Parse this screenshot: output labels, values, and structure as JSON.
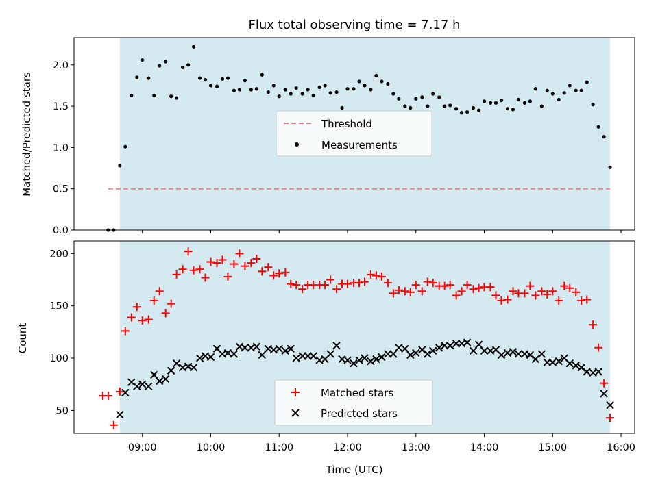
{
  "chart_data": [
    {
      "type": "scatter",
      "title": "Flux total observing time = 7.17 h",
      "xlabel": "",
      "ylabel": "Matched/Predicted stars",
      "x_unit": "hours (UTC)",
      "xlim": [
        8.0,
        16.2
      ],
      "ylim": [
        0.0,
        2.33
      ],
      "yticks": [
        0.0,
        0.5,
        1.0,
        1.5,
        2.0
      ],
      "ytick_labels": [
        "0.0",
        "0.5",
        "1.0",
        "1.5",
        "2.0"
      ],
      "shaded_region": {
        "x": [
          8.67,
          15.84
        ],
        "color": "#d4e9f0"
      },
      "threshold": {
        "name": "Threshold",
        "value": 0.5,
        "x": [
          8.5,
          15.84
        ],
        "color": "#f08080",
        "style": "dashed"
      },
      "legend": {
        "placement": "center",
        "entries": [
          "Threshold",
          "Measurements"
        ]
      },
      "series": [
        {
          "name": "Measurements",
          "marker": "dot",
          "color": "#000000",
          "x": [
            8.5,
            8.58,
            8.67,
            8.75,
            8.84,
            8.92,
            9.0,
            9.09,
            9.17,
            9.25,
            9.34,
            9.42,
            9.5,
            9.59,
            9.67,
            9.75,
            9.84,
            9.92,
            10.0,
            10.09,
            10.17,
            10.25,
            10.34,
            10.42,
            10.5,
            10.59,
            10.67,
            10.75,
            10.84,
            10.92,
            11.0,
            11.09,
            11.17,
            11.25,
            11.34,
            11.42,
            11.5,
            11.59,
            11.67,
            11.75,
            11.84,
            11.92,
            12.0,
            12.09,
            12.17,
            12.25,
            12.34,
            12.42,
            12.5,
            12.59,
            12.67,
            12.75,
            12.84,
            12.92,
            13.0,
            13.09,
            13.17,
            13.25,
            13.34,
            13.42,
            13.5,
            13.59,
            13.67,
            13.75,
            13.84,
            13.92,
            14.0,
            14.09,
            14.17,
            14.25,
            14.34,
            14.42,
            14.5,
            14.59,
            14.67,
            14.75,
            14.84,
            14.92,
            15.0,
            15.09,
            15.17,
            15.25,
            15.34,
            15.42,
            15.5,
            15.59,
            15.67,
            15.75,
            15.84
          ],
          "y": [
            0.0,
            0.0,
            0.78,
            1.01,
            1.63,
            1.85,
            2.06,
            1.84,
            1.63,
            1.99,
            2.04,
            1.62,
            1.6,
            1.97,
            2.0,
            2.22,
            1.84,
            1.82,
            1.75,
            1.74,
            1.83,
            1.84,
            1.69,
            1.7,
            1.81,
            1.7,
            1.71,
            1.88,
            1.67,
            1.75,
            1.62,
            1.7,
            1.65,
            1.72,
            1.65,
            1.7,
            1.63,
            1.73,
            1.75,
            1.66,
            1.67,
            1.48,
            1.71,
            1.71,
            1.8,
            1.75,
            1.7,
            1.87,
            1.8,
            1.77,
            1.65,
            1.59,
            1.5,
            1.48,
            1.59,
            1.61,
            1.5,
            1.65,
            1.61,
            1.5,
            1.51,
            1.47,
            1.42,
            1.43,
            1.48,
            1.45,
            1.56,
            1.54,
            1.54,
            1.57,
            1.47,
            1.46,
            1.58,
            1.54,
            1.56,
            1.71,
            1.5,
            1.69,
            1.65,
            1.58,
            1.66,
            1.75,
            1.69,
            1.69,
            1.79,
            1.52,
            1.25,
            1.13,
            0.76
          ]
        }
      ]
    },
    {
      "type": "scatter",
      "title": "",
      "xlabel": "Time (UTC)",
      "ylabel": "Count",
      "x_unit": "hours (UTC)",
      "xlim": [
        8.0,
        16.2
      ],
      "ylim": [
        28,
        212
      ],
      "yticks": [
        50,
        100,
        150,
        200
      ],
      "ytick_labels": [
        "50",
        "100",
        "150",
        "200"
      ],
      "xticks": [
        9,
        10,
        11,
        12,
        13,
        14,
        15,
        16
      ],
      "xtick_labels": [
        "09:00",
        "10:00",
        "11:00",
        "12:00",
        "13:00",
        "14:00",
        "15:00",
        "16:00"
      ],
      "shaded_region": {
        "x": [
          8.67,
          15.84
        ],
        "color": "#d4e9f0"
      },
      "legend": {
        "placement": "bottom-center",
        "entries": [
          "Matched stars",
          "Predicted stars"
        ]
      },
      "series": [
        {
          "name": "Matched stars",
          "marker": "plus",
          "color": "#ff0000",
          "x": [
            8.42,
            8.5,
            8.58,
            8.67,
            8.75,
            8.84,
            8.92,
            9.0,
            9.09,
            9.17,
            9.25,
            9.34,
            9.42,
            9.5,
            9.59,
            9.67,
            9.75,
            9.84,
            9.92,
            10.0,
            10.09,
            10.17,
            10.25,
            10.34,
            10.42,
            10.5,
            10.59,
            10.67,
            10.75,
            10.84,
            10.92,
            11.0,
            11.09,
            11.17,
            11.25,
            11.34,
            11.42,
            11.5,
            11.59,
            11.67,
            11.75,
            11.84,
            11.92,
            12.0,
            12.09,
            12.17,
            12.25,
            12.34,
            12.42,
            12.5,
            12.59,
            12.67,
            12.75,
            12.84,
            12.92,
            13.0,
            13.09,
            13.17,
            13.25,
            13.34,
            13.42,
            13.5,
            13.59,
            13.67,
            13.75,
            13.84,
            13.92,
            14.0,
            14.09,
            14.17,
            14.25,
            14.34,
            14.42,
            14.5,
            14.59,
            14.67,
            14.75,
            14.84,
            14.92,
            15.0,
            15.09,
            15.17,
            15.25,
            15.34,
            15.42,
            15.5,
            15.59,
            15.67,
            15.75,
            15.84
          ],
          "y": [
            64,
            64,
            36,
            68,
            126,
            139,
            149,
            136,
            137,
            155,
            164,
            143,
            152,
            180,
            185,
            202,
            184,
            185,
            177,
            192,
            191,
            194,
            178,
            190,
            200,
            188,
            191,
            195,
            183,
            187,
            179,
            181,
            182,
            171,
            170,
            166,
            170,
            170,
            170,
            170,
            175,
            166,
            171,
            171,
            172,
            172,
            173,
            180,
            179,
            178,
            172,
            162,
            165,
            164,
            163,
            170,
            164,
            173,
            172,
            169,
            169,
            170,
            160,
            164,
            170,
            166,
            167,
            168,
            168,
            160,
            155,
            156,
            164,
            162,
            162,
            169,
            160,
            164,
            161,
            164,
            155,
            169,
            167,
            163,
            155,
            156,
            132,
            110,
            76,
            43
          ]
        },
        {
          "name": "Predicted stars",
          "marker": "x",
          "color": "#000000",
          "x": [
            8.67,
            8.75,
            8.84,
            8.92,
            9.0,
            9.09,
            9.17,
            9.25,
            9.34,
            9.42,
            9.5,
            9.59,
            9.67,
            9.75,
            9.84,
            9.92,
            10.0,
            10.09,
            10.17,
            10.25,
            10.34,
            10.42,
            10.5,
            10.59,
            10.67,
            10.75,
            10.84,
            10.92,
            11.0,
            11.09,
            11.17,
            11.25,
            11.34,
            11.42,
            11.5,
            11.59,
            11.67,
            11.75,
            11.84,
            11.92,
            12.0,
            12.09,
            12.17,
            12.25,
            12.34,
            12.42,
            12.5,
            12.59,
            12.67,
            12.75,
            12.84,
            12.92,
            13.0,
            13.09,
            13.17,
            13.25,
            13.34,
            13.42,
            13.5,
            13.59,
            13.67,
            13.75,
            13.84,
            13.92,
            14.0,
            14.09,
            14.17,
            14.25,
            14.34,
            14.42,
            14.5,
            14.59,
            14.67,
            14.75,
            14.84,
            14.92,
            15.0,
            15.09,
            15.17,
            15.25,
            15.34,
            15.42,
            15.5,
            15.59,
            15.67,
            15.75,
            15.84
          ],
          "y": [
            46,
            67,
            77,
            73,
            75,
            73,
            84,
            78,
            80,
            88,
            95,
            91,
            92,
            91,
            100,
            102,
            101,
            109,
            104,
            105,
            104,
            111,
            110,
            110,
            111,
            103,
            109,
            108,
            109,
            107,
            109,
            100,
            102,
            102,
            102,
            98,
            99,
            104,
            112,
            99,
            98,
            95,
            98,
            100,
            97,
            99,
            101,
            104,
            104,
            110,
            109,
            103,
            105,
            108,
            104,
            107,
            110,
            112,
            112,
            114,
            114,
            115,
            107,
            113,
            107,
            107,
            108,
            103,
            105,
            106,
            104,
            104,
            103,
            99,
            104,
            96,
            96,
            97,
            100,
            95,
            93,
            91,
            87,
            86,
            87,
            66,
            55
          ]
        }
      ]
    }
  ]
}
